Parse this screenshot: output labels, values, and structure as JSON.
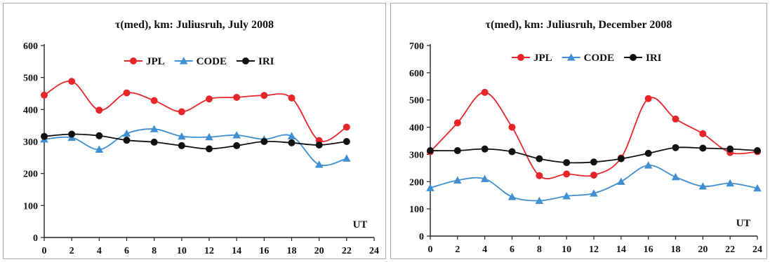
{
  "chart_data": [
    {
      "type": "line",
      "title": "τ(med), km: Juliusruh, July 2008",
      "xlabel": "UT",
      "ylabel": "",
      "x": [
        0,
        2,
        4,
        6,
        8,
        10,
        12,
        14,
        16,
        18,
        20,
        22
      ],
      "xticks": [
        0,
        2,
        4,
        6,
        8,
        10,
        12,
        14,
        16,
        18,
        20,
        22,
        24
      ],
      "yticks": [
        0,
        100,
        200,
        300,
        400,
        500,
        600
      ],
      "xlim": [
        0,
        24
      ],
      "ylim": [
        0,
        600
      ],
      "grid": false,
      "legend_position": "top",
      "series": [
        {
          "name": "JPL",
          "color": "#e8262a",
          "marker": "circle",
          "values": [
            445,
            488,
            398,
            452,
            428,
            393,
            433,
            438,
            444,
            436,
            303,
            345
          ]
        },
        {
          "name": "CODE",
          "color": "#3f8fd2",
          "marker": "triangle",
          "values": [
            307,
            312,
            275,
            325,
            339,
            316,
            314,
            320,
            307,
            317,
            228,
            247
          ]
        },
        {
          "name": "IRI",
          "color": "#111111",
          "marker": "circle",
          "values": [
            316,
            323,
            318,
            304,
            298,
            287,
            277,
            287,
            300,
            296,
            289,
            300
          ]
        }
      ]
    },
    {
      "type": "line",
      "title": "τ(med), km: Juliusruh, December 2008",
      "xlabel": "UT",
      "ylabel": "",
      "x": [
        0,
        2,
        4,
        6,
        8,
        10,
        12,
        14,
        16,
        18,
        20,
        22,
        24
      ],
      "xticks": [
        0,
        2,
        4,
        6,
        8,
        10,
        12,
        14,
        16,
        18,
        20,
        22,
        24
      ],
      "yticks": [
        0,
        100,
        200,
        300,
        400,
        500,
        600,
        700
      ],
      "xlim": [
        0,
        24
      ],
      "ylim": [
        0,
        700
      ],
      "grid": false,
      "legend_position": "top",
      "series": [
        {
          "name": "JPL",
          "color": "#e8262a",
          "marker": "circle",
          "values": [
            310,
            416,
            528,
            400,
            222,
            228,
            224,
            287,
            505,
            430,
            376,
            307,
            310
          ]
        },
        {
          "name": "CODE",
          "color": "#3f8fd2",
          "marker": "triangle",
          "values": [
            177,
            205,
            210,
            144,
            130,
            147,
            157,
            200,
            260,
            217,
            183,
            194,
            176
          ]
        },
        {
          "name": "IRI",
          "color": "#111111",
          "marker": "circle",
          "values": [
            314,
            314,
            320,
            310,
            284,
            270,
            272,
            284,
            304,
            325,
            323,
            320,
            314
          ]
        }
      ]
    }
  ]
}
